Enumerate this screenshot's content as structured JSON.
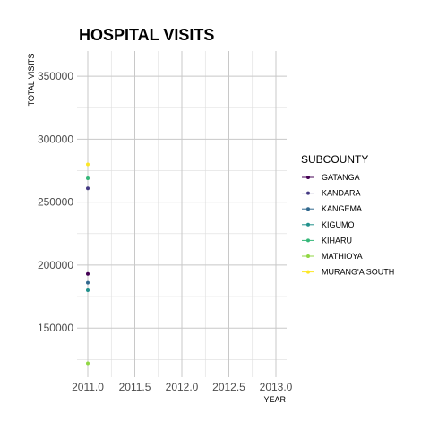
{
  "chart_data": {
    "type": "scatter",
    "title": "HOSPITAL VISITS",
    "xlabel": "YEAR",
    "ylabel": "TOTAL VISITS",
    "xlim": [
      2011.0,
      2013.0
    ],
    "ylim": [
      111000,
      370000
    ],
    "x_ticks": [
      2011.0,
      2011.5,
      2012.0,
      2012.5,
      2013.0
    ],
    "x_tick_labels": [
      "2011.0",
      "2011.5",
      "2012.0",
      "2012.5",
      "2013.0"
    ],
    "y_ticks": [
      150000,
      200000,
      250000,
      300000,
      350000
    ],
    "y_tick_labels": [
      "150000",
      "200000",
      "250000",
      "300000",
      "350000"
    ],
    "grid": true,
    "legend_title": "SUBCOUNTY",
    "legend_position": "right",
    "series": [
      {
        "name": "GATANGA",
        "color": "#440154",
        "x": [
          2011.0
        ],
        "y": [
          193000
        ]
      },
      {
        "name": "KANDARA",
        "color": "#443983",
        "x": [
          2011.0
        ],
        "y": [
          261000
        ]
      },
      {
        "name": "KANGEMA",
        "color": "#31688e",
        "x": [
          2011.0
        ],
        "y": [
          186000
        ]
      },
      {
        "name": "KIGUMO",
        "color": "#21918c",
        "x": [
          2011.0
        ],
        "y": [
          180000
        ]
      },
      {
        "name": "KIHARU",
        "color": "#35b779",
        "x": [
          2011.0
        ],
        "y": [
          269000
        ]
      },
      {
        "name": "MATHIOYA",
        "color": "#90d743",
        "x": [
          2011.0
        ],
        "y": [
          122000
        ]
      },
      {
        "name": "MURANG'A SOUTH",
        "color": "#fde725",
        "x": [
          2011.0
        ],
        "y": [
          280000
        ]
      }
    ]
  }
}
